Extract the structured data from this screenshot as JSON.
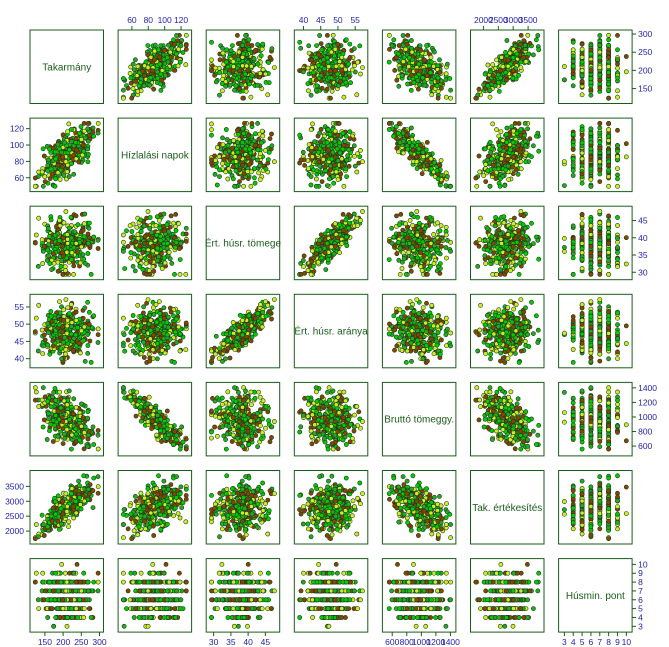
{
  "chart_data": {
    "type": "scatter",
    "subtype": "scatterplot-matrix",
    "variables": [
      {
        "name": "Takarmány",
        "range": [
          120,
          300
        ],
        "ticks": [
          150,
          200,
          250,
          300
        ],
        "integer": false
      },
      {
        "name": "Hízlalási napok",
        "range": [
          48,
          128
        ],
        "ticks": [
          60,
          80,
          100,
          120
        ],
        "integer": false
      },
      {
        "name": "Ért. húsr. tömege",
        "range": [
          29,
          48
        ],
        "ticks": [
          30,
          35,
          40,
          45
        ],
        "integer": false
      },
      {
        "name": "Ért. húsr. aránya",
        "range": [
          38.5,
          57.5
        ],
        "ticks": [
          40,
          45,
          50,
          55
        ],
        "integer": false
      },
      {
        "name": "Bruttó tömeggy.",
        "range": [
          520,
          1420
        ],
        "ticks": [
          600,
          800,
          1000,
          1200,
          1400
        ],
        "integer": false
      },
      {
        "name": "Tak. értékesítés",
        "range": [
          1700,
          3900
        ],
        "ticks": [
          2000,
          2500,
          3000,
          3500
        ],
        "integer": false
      },
      {
        "name": "Húsmin. pont",
        "range": [
          2.8,
          10.2
        ],
        "ticks": [
          3,
          4,
          5,
          6,
          7,
          8,
          9,
          10
        ],
        "integer": true
      }
    ],
    "correlations": [
      [
        1,
        0.65,
        0,
        0,
        -0.45,
        0.78,
        0
      ],
      [
        0.65,
        1,
        0,
        0,
        -0.85,
        0.45,
        0
      ],
      [
        0,
        0,
        1,
        0.85,
        0,
        0,
        0
      ],
      [
        0,
        0,
        0.85,
        1,
        0,
        0,
        0
      ],
      [
        -0.45,
        -0.85,
        0,
        0,
        1,
        -0.55,
        0
      ],
      [
        0.78,
        0.45,
        0,
        0,
        -0.55,
        1,
        0
      ],
      [
        0,
        0,
        0,
        0,
        0,
        0,
        1
      ]
    ],
    "n_points": 320,
    "point_colors": [
      "#22aa22",
      "#ccee22",
      "#884400",
      "#00cc00"
    ],
    "frame_color": "#1a5c1a",
    "tick_label_color": "#2222aa",
    "label_color": "#1a5c1a"
  }
}
